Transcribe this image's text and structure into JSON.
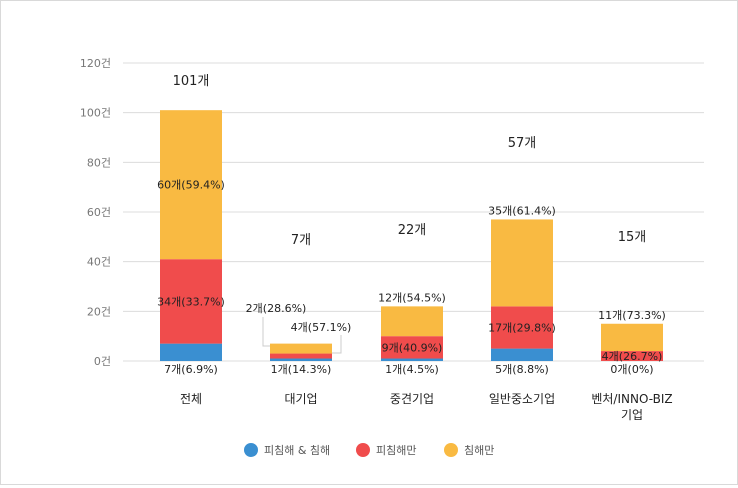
{
  "chart_data": {
    "type": "bar",
    "stacked": true,
    "categories": [
      "전체",
      "대기업",
      "중견기업",
      "일반중소기업",
      "벤처/INNO-BIZ\n기업"
    ],
    "series": [
      {
        "name": "피침해 & 침해",
        "color": "#3a8fd1",
        "values": [
          7,
          1,
          1,
          5,
          0
        ],
        "labels": [
          "7개(6.9%)",
          "1개(14.3%)",
          "1개(4.5%)",
          "5개(8.8%)",
          "0개(0%)"
        ]
      },
      {
        "name": "피침해만",
        "color": "#f04c4c",
        "values": [
          34,
          2,
          9,
          17,
          4
        ],
        "labels": [
          "34개(33.7%)",
          "2개(28.6%)",
          "9개(40.9%)",
          "17개(29.8%)",
          "4개(26.7%)"
        ]
      },
      {
        "name": "침해만",
        "color": "#f9ba42",
        "values": [
          60,
          4,
          12,
          35,
          11
        ],
        "labels": [
          "60개(59.4%)",
          "4개(57.1%)",
          "12개(54.5%)",
          "35개(61.4%)",
          "11개(73.3%)"
        ]
      }
    ],
    "totals": [
      "101개",
      "7개",
      "22개",
      "57개",
      "15개"
    ],
    "ylim": [
      0,
      120
    ],
    "yticks": [
      "0건",
      "20건",
      "40건",
      "60건",
      "80건",
      "100건",
      "120건"
    ],
    "grid": true,
    "legend": "bottom"
  }
}
